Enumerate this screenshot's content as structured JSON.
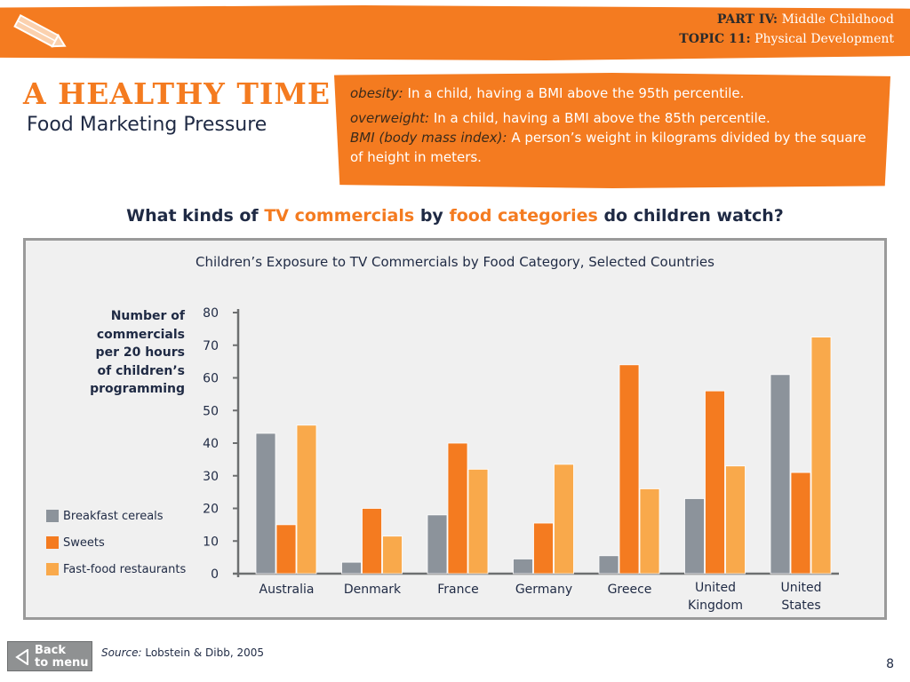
{
  "header": {
    "part_label": "PART IV:",
    "part_title": "Middle Childhood",
    "topic_label": "TOPIC 11:",
    "topic_title": "Physical Development"
  },
  "title": "A HEALTHY TIME",
  "subtitle": "Food Marketing Pressure",
  "definitions": [
    {
      "term": "obesity:",
      "text": "In a child, having a BMI above the 95th percentile."
    },
    {
      "term": "overweight:",
      "text": "In a child, having a BMI above the 85th percentile."
    },
    {
      "term": "BMI (body mass index):",
      "text": "A person’s weight in kilograms divided by the square of height in meters."
    }
  ],
  "question": {
    "part1": "What kinds of",
    "hl1": "TV commercials",
    "part2": "by",
    "hl2": "food categories",
    "part3": "do children watch?"
  },
  "chart_data": {
    "type": "bar",
    "title": "Children’s Exposure to TV Commercials by Food Category, Selected Countries",
    "ylabel": "Number of commercials per 20 hours of children’s programming",
    "xlabel": "",
    "ylim": [
      0,
      80
    ],
    "yticks": [
      0,
      10,
      20,
      30,
      40,
      50,
      60,
      70,
      80
    ],
    "categories": [
      "Australia",
      "Denmark",
      "France",
      "Germany",
      "Greece",
      "United Kingdom",
      "United States"
    ],
    "category_lines": [
      [
        "Australia"
      ],
      [
        "Denmark"
      ],
      [
        "France"
      ],
      [
        "Germany"
      ],
      [
        "Greece"
      ],
      [
        "United",
        "Kingdom"
      ],
      [
        "United",
        "States"
      ]
    ],
    "series": [
      {
        "name": "Breakfast cereals",
        "color": "#8c939b",
        "values": [
          43,
          3.5,
          18,
          4.5,
          5.5,
          23,
          61
        ]
      },
      {
        "name": "Sweets",
        "color": "#f47b20",
        "values": [
          15,
          20,
          40,
          15.5,
          64,
          56,
          31
        ]
      },
      {
        "name": "Fast-food restaurants",
        "color": "#f9a94b",
        "values": [
          45.5,
          11.5,
          32,
          33.5,
          26,
          33,
          72.5
        ]
      }
    ],
    "legend_position": "left",
    "grid": false
  },
  "source": {
    "label": "Source:",
    "text": "Lobstein & Dibb, 2005"
  },
  "nav": {
    "back_label_1": "Back",
    "back_label_2": "to menu"
  },
  "page_number": "8"
}
